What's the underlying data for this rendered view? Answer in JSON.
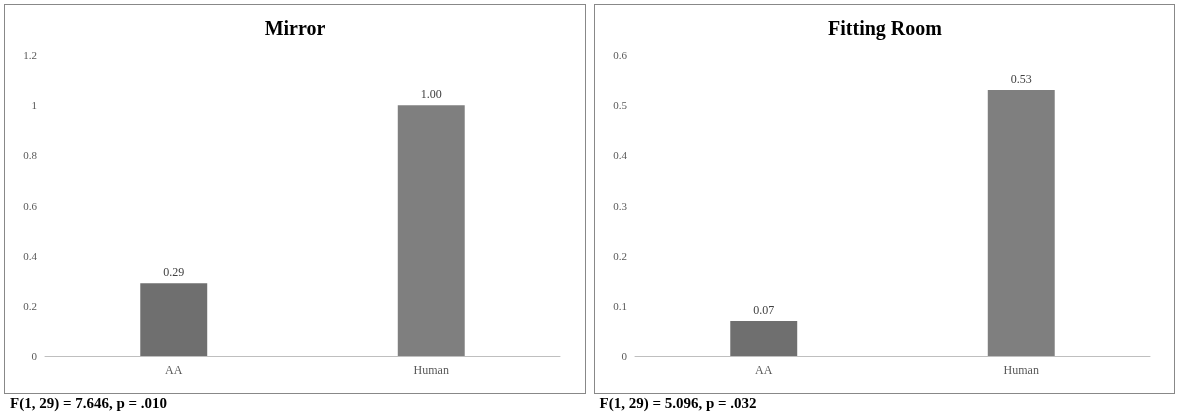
{
  "chart_data": [
    {
      "type": "bar",
      "title": "Mirror",
      "categories": [
        "AA",
        "Human"
      ],
      "values": [
        0.29,
        1.0
      ],
      "colors": [
        "#6f6f6f",
        "#7f7f7f"
      ],
      "value_labels": [
        "0.29",
        "1.00"
      ],
      "ylim": [
        0,
        1.2
      ],
      "yticks": [
        0,
        0.2,
        0.4,
        0.6,
        0.8,
        1,
        1.2
      ],
      "annotations": [
        "F(1, 29) = 7.646, p = .010"
      ]
    },
    {
      "type": "bar",
      "title": "Fitting Room",
      "categories": [
        "AA",
        "Human"
      ],
      "values": [
        0.07,
        0.53
      ],
      "colors": [
        "#6f6f6f",
        "#7f7f7f"
      ],
      "value_labels": [
        "0.07",
        "0.53"
      ],
      "ylim": [
        0,
        0.6
      ],
      "yticks": [
        0,
        0.1,
        0.2,
        0.3,
        0.4,
        0.5,
        0.6
      ],
      "annotations": [
        "F(1, 29) = 5.096, p = .032"
      ]
    }
  ]
}
